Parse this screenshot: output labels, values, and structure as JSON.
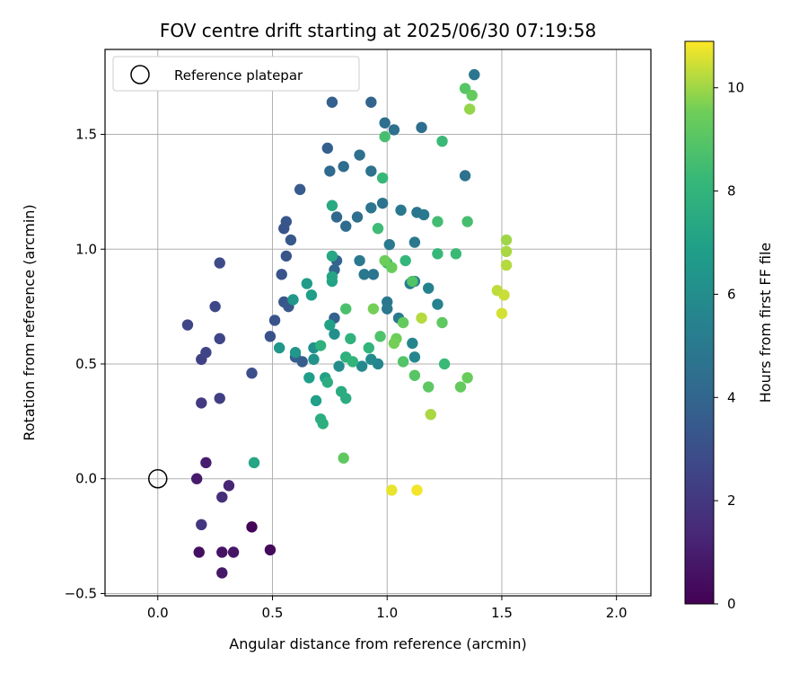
{
  "chart_data": {
    "type": "scatter",
    "title": "FOV centre drift starting at 2025/06/30 07:19:58",
    "xlabel": "Angular distance from reference (arcmin)",
    "ylabel": "Rotation from reference (arcmin)",
    "xlim": [
      -0.23,
      2.15
    ],
    "ylim": [
      -0.51,
      1.87
    ],
    "xticks": [
      0.0,
      0.5,
      1.0,
      1.5,
      2.0
    ],
    "xtick_labels": [
      "0.0",
      "0.5",
      "1.0",
      "1.5",
      "2.0"
    ],
    "yticks": [
      -0.5,
      0.0,
      0.5,
      1.0,
      1.5
    ],
    "ytick_labels": [
      "−0.5",
      "0.0",
      "0.5",
      "1.0",
      "1.5"
    ],
    "grid": true,
    "legend": {
      "placement": "top-left",
      "label": "Reference platepar"
    },
    "reference_point": {
      "x": 0.0,
      "y": 0.0
    },
    "colorbar": {
      "label": "Hours from first FF file",
      "colormap": "viridis",
      "range": [
        0,
        10.9
      ],
      "ticks": [
        0,
        2,
        4,
        6,
        8,
        10
      ],
      "tick_labels": [
        "0",
        "2",
        "4",
        "6",
        "8",
        "10"
      ]
    },
    "series": [
      {
        "points": [
          [
            0.41,
            -0.21,
            0.1
          ],
          [
            0.49,
            -0.31,
            0.3
          ],
          [
            0.18,
            -0.32,
            0.5
          ],
          [
            0.28,
            -0.32,
            0.6
          ],
          [
            0.33,
            -0.32,
            0.7
          ],
          [
            0.28,
            -0.41,
            0.8
          ],
          [
            0.17,
            0.0,
            0.9
          ],
          [
            0.21,
            0.07,
            1.0
          ],
          [
            0.31,
            -0.03,
            1.3
          ],
          [
            0.28,
            -0.08,
            1.6
          ],
          [
            0.19,
            -0.2,
            1.9
          ],
          [
            0.19,
            0.33,
            2.1
          ],
          [
            0.27,
            0.35,
            2.3
          ],
          [
            0.19,
            0.52,
            2.4
          ],
          [
            0.21,
            0.55,
            2.5
          ],
          [
            0.27,
            0.61,
            2.6
          ],
          [
            0.13,
            0.67,
            2.6
          ],
          [
            0.25,
            0.75,
            2.7
          ],
          [
            0.27,
            0.94,
            2.8
          ],
          [
            0.41,
            0.46,
            3.0
          ],
          [
            0.49,
            0.62,
            3.1
          ],
          [
            0.51,
            0.69,
            3.2
          ],
          [
            0.54,
            0.89,
            3.2
          ],
          [
            0.55,
            0.77,
            3.3
          ],
          [
            0.57,
            0.75,
            3.4
          ],
          [
            0.56,
            0.97,
            3.3
          ],
          [
            0.55,
            1.09,
            3.2
          ],
          [
            0.56,
            1.12,
            3.3
          ],
          [
            0.58,
            1.04,
            3.4
          ],
          [
            0.62,
            1.26,
            3.5
          ],
          [
            0.63,
            0.51,
            3.6
          ],
          [
            0.6,
            0.53,
            3.7
          ],
          [
            0.74,
            1.44,
            3.7
          ],
          [
            0.76,
            1.64,
            3.8
          ],
          [
            0.93,
            1.64,
            3.9
          ],
          [
            0.77,
            0.7,
            3.8
          ],
          [
            0.78,
            0.95,
            3.9
          ],
          [
            0.77,
            0.91,
            4.0
          ],
          [
            0.78,
            1.14,
            4.1
          ],
          [
            0.75,
            1.34,
            4.2
          ],
          [
            0.81,
            1.36,
            4.3
          ],
          [
            0.82,
            1.1,
            4.3
          ],
          [
            0.87,
            1.14,
            4.4
          ],
          [
            0.88,
            1.41,
            4.5
          ],
          [
            0.93,
            1.34,
            4.6
          ],
          [
            0.99,
            1.55,
            4.4
          ],
          [
            1.03,
            1.52,
            4.5
          ],
          [
            1.15,
            1.53,
            4.4
          ],
          [
            1.34,
            1.32,
            4.6
          ],
          [
            1.38,
            1.76,
            4.8
          ],
          [
            0.98,
            1.2,
            4.7
          ],
          [
            0.93,
            1.18,
            4.8
          ],
          [
            1.06,
            1.17,
            4.9
          ],
          [
            1.13,
            1.16,
            4.8
          ],
          [
            1.16,
            1.15,
            4.9
          ],
          [
            1.12,
            1.03,
            4.9
          ],
          [
            1.01,
            1.02,
            5.0
          ],
          [
            0.88,
            0.95,
            5.0
          ],
          [
            0.9,
            0.89,
            4.9
          ],
          [
            0.94,
            0.89,
            4.8
          ],
          [
            1.0,
            0.77,
            4.9
          ],
          [
            1.0,
            0.74,
            5.0
          ],
          [
            1.05,
            0.7,
            5.1
          ],
          [
            1.1,
            0.85,
            5.2
          ],
          [
            1.12,
            0.86,
            5.3
          ],
          [
            1.18,
            0.83,
            5.4
          ],
          [
            1.22,
            0.76,
            5.5
          ],
          [
            1.11,
            0.59,
            5.6
          ],
          [
            1.12,
            0.53,
            5.7
          ],
          [
            0.96,
            0.5,
            5.7
          ],
          [
            0.89,
            0.49,
            5.8
          ],
          [
            0.93,
            0.52,
            5.9
          ],
          [
            0.79,
            0.49,
            6.0
          ],
          [
            0.77,
            0.63,
            6.1
          ],
          [
            0.68,
            0.57,
            6.2
          ],
          [
            0.68,
            0.52,
            6.3
          ],
          [
            0.6,
            0.55,
            6.4
          ],
          [
            0.53,
            0.57,
            6.4
          ],
          [
            0.59,
            0.78,
            6.5
          ],
          [
            0.65,
            0.85,
            6.7
          ],
          [
            0.67,
            0.8,
            6.8
          ],
          [
            0.66,
            0.44,
            6.8
          ],
          [
            0.69,
            0.34,
            6.9
          ],
          [
            0.73,
            0.44,
            7.0
          ],
          [
            0.75,
            0.67,
            7.0
          ],
          [
            0.76,
            0.86,
            7.1
          ],
          [
            0.76,
            0.88,
            7.2
          ],
          [
            0.76,
            0.97,
            7.3
          ],
          [
            0.76,
            1.19,
            7.4
          ],
          [
            0.8,
            0.38,
            7.5
          ],
          [
            0.82,
            0.35,
            7.6
          ],
          [
            0.74,
            0.42,
            7.6
          ],
          [
            0.71,
            0.26,
            7.6
          ],
          [
            0.72,
            0.24,
            7.7
          ],
          [
            0.71,
            0.58,
            7.8
          ],
          [
            0.82,
            0.53,
            7.8
          ],
          [
            0.84,
            0.61,
            7.9
          ],
          [
            0.85,
            0.51,
            8.0
          ],
          [
            0.92,
            0.57,
            8.0
          ],
          [
            1.08,
            0.95,
            8.1
          ],
          [
            1.0,
            0.94,
            8.2
          ],
          [
            1.22,
            0.98,
            8.2
          ],
          [
            1.3,
            0.98,
            8.3
          ],
          [
            0.98,
            1.31,
            8.2
          ],
          [
            1.24,
            1.47,
            8.3
          ],
          [
            1.25,
            0.5,
            8.3
          ],
          [
            0.42,
            0.07,
            7.2
          ],
          [
            0.96,
            1.09,
            8.4
          ],
          [
            0.99,
            1.49,
            8.6
          ],
          [
            1.22,
            1.12,
            8.5
          ],
          [
            1.35,
            1.12,
            8.6
          ],
          [
            0.82,
            0.74,
            8.7
          ],
          [
            0.97,
            0.62,
            8.8
          ],
          [
            1.07,
            0.51,
            8.9
          ],
          [
            1.11,
            0.86,
            8.9
          ],
          [
            1.12,
            0.45,
            9.0
          ],
          [
            1.18,
            0.4,
            9.1
          ],
          [
            1.24,
            0.68,
            9.2
          ],
          [
            1.32,
            0.4,
            9.3
          ],
          [
            1.35,
            0.44,
            9.4
          ],
          [
            1.34,
            1.7,
            9.0
          ],
          [
            1.37,
            1.67,
            9.3
          ],
          [
            0.81,
            0.09,
            9.2
          ],
          [
            1.07,
            0.68,
            9.3
          ],
          [
            1.04,
            0.61,
            9.5
          ],
          [
            1.03,
            0.59,
            9.6
          ],
          [
            1.02,
            0.92,
            9.4
          ],
          [
            0.99,
            0.95,
            9.5
          ],
          [
            0.94,
            0.74,
            9.6
          ],
          [
            1.36,
            1.61,
            9.9
          ],
          [
            1.19,
            0.28,
            10.1
          ],
          [
            1.15,
            0.7,
            10.2
          ],
          [
            1.52,
            1.04,
            10.0
          ],
          [
            1.52,
            0.99,
            10.1
          ],
          [
            1.52,
            0.93,
            10.2
          ],
          [
            1.48,
            0.82,
            10.3
          ],
          [
            1.51,
            0.8,
            10.4
          ],
          [
            1.5,
            0.72,
            10.5
          ],
          [
            1.02,
            -0.05,
            10.7
          ],
          [
            1.13,
            -0.05,
            10.8
          ]
        ]
      }
    ]
  }
}
